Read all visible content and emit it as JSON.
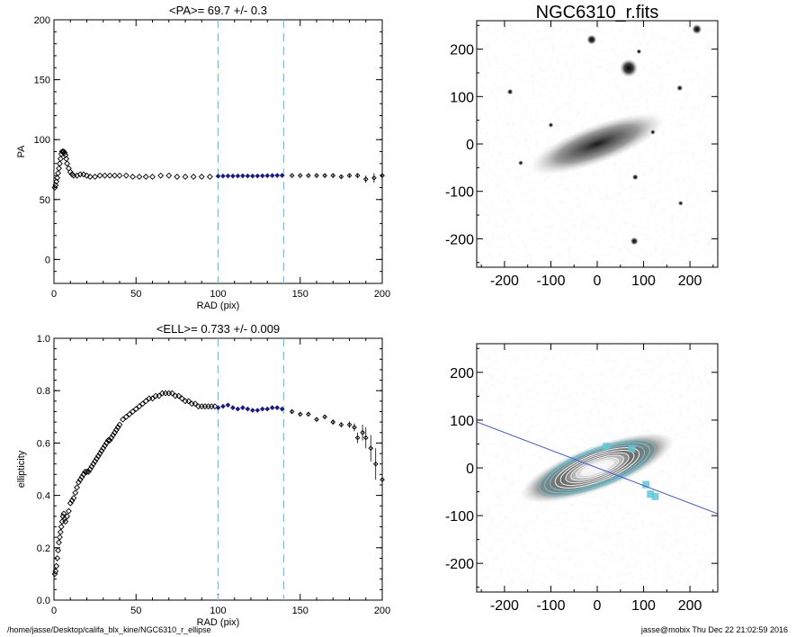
{
  "footer": {
    "path": "/home/jasse/Desktop/califa_blx_kine/NGC6310_r_ellipse",
    "user_time": "jasse@mobix  Thu Dec 22 21:02:59 2016"
  },
  "colors": {
    "fit_range": "#5fc8d8",
    "fit_points": "#1a1a8c",
    "pa_line": "#4a5fd8"
  },
  "chart_data": [
    {
      "type": "scatter",
      "title": "<PA>=  69.7 +/-   0.3",
      "xlabel": "RAD (pix)",
      "ylabel": "PA",
      "xlim": [
        0,
        200
      ],
      "ylim": [
        -20,
        200
      ],
      "xticks": [
        0,
        50,
        100,
        150,
        200
      ],
      "yticks": [
        0,
        50,
        100,
        150,
        200
      ],
      "fit_range": [
        100,
        140
      ],
      "series": [
        {
          "x": [
            0.5,
            1,
            1.5,
            2,
            2.5,
            3,
            3.5,
            4,
            4.5,
            5,
            5.5,
            6,
            6.5,
            7,
            7.5,
            8,
            9,
            10,
            11,
            12,
            14,
            16,
            18,
            20,
            22,
            25,
            28,
            31,
            34,
            37,
            40,
            44,
            48,
            52,
            56,
            60,
            65,
            70,
            75,
            80,
            85,
            90,
            95
          ],
          "y": [
            60,
            62,
            65,
            68,
            72,
            76,
            80,
            84,
            88,
            90,
            90,
            90,
            89,
            87,
            84,
            80,
            76,
            73,
            71,
            70,
            70,
            71,
            71,
            70,
            69,
            69,
            70,
            70,
            70,
            70,
            70,
            70,
            69,
            69,
            69,
            69,
            70,
            70,
            69,
            69,
            69,
            69,
            69
          ]
        },
        {
          "x": [
            100,
            103,
            106,
            109,
            112,
            115,
            118,
            121,
            124,
            127,
            130,
            133,
            136,
            139
          ],
          "y": [
            69.5,
            69.6,
            69.7,
            69.6,
            69.7,
            69.8,
            69.7,
            69.6,
            69.7,
            69.8,
            69.9,
            70,
            70.1,
            70.1
          ]
        },
        {
          "x": [
            145,
            150,
            155,
            160,
            165,
            170,
            175,
            180,
            185,
            190,
            195,
            200
          ],
          "y": [
            70,
            70,
            70,
            70,
            70,
            70,
            69,
            70,
            70,
            67,
            68,
            70
          ],
          "err": [
            0.6,
            0.6,
            0.7,
            0.8,
            1,
            1.2,
            1.4,
            1.6,
            2,
            3,
            4,
            5
          ]
        }
      ]
    },
    {
      "type": "scatter",
      "title": "<ELL>= 0.733 +/-  0.009",
      "xlabel": "RAD (pix)",
      "ylabel": "ellipticity",
      "xlim": [
        0,
        200
      ],
      "ylim": [
        0,
        1
      ],
      "xticks": [
        0,
        50,
        100,
        150,
        200
      ],
      "yticks": [
        0.0,
        0.2,
        0.4,
        0.6,
        0.8,
        1.0
      ],
      "fit_range": [
        100,
        140
      ],
      "series": [
        {
          "x": [
            0.5,
            1,
            1.5,
            2,
            2.5,
            3,
            3.5,
            4,
            4.5,
            5,
            5.5,
            6,
            6.5,
            7,
            8,
            9,
            10,
            11,
            12,
            13,
            14,
            15,
            16,
            17,
            18,
            19,
            20,
            21,
            22,
            23,
            24,
            25,
            26,
            27,
            28,
            29,
            30,
            31,
            32,
            33,
            34,
            35,
            36,
            37,
            38,
            39,
            40,
            42,
            44,
            46,
            48,
            50,
            52,
            54,
            56,
            58,
            60,
            62,
            64,
            66,
            68,
            70,
            72,
            74,
            76,
            78,
            80,
            82,
            84,
            86,
            88,
            90,
            92,
            94,
            96,
            98
          ],
          "y": [
            0.1,
            0.11,
            0.13,
            0.16,
            0.19,
            0.22,
            0.24,
            0.26,
            0.28,
            0.3,
            0.32,
            0.33,
            0.31,
            0.3,
            0.32,
            0.34,
            0.37,
            0.38,
            0.39,
            0.41,
            0.43,
            0.45,
            0.46,
            0.47,
            0.48,
            0.49,
            0.49,
            0.49,
            0.5,
            0.51,
            0.52,
            0.53,
            0.54,
            0.55,
            0.56,
            0.57,
            0.58,
            0.59,
            0.6,
            0.61,
            0.61,
            0.62,
            0.63,
            0.64,
            0.65,
            0.66,
            0.67,
            0.69,
            0.7,
            0.71,
            0.72,
            0.73,
            0.74,
            0.75,
            0.76,
            0.77,
            0.77,
            0.78,
            0.78,
            0.79,
            0.79,
            0.79,
            0.79,
            0.78,
            0.78,
            0.77,
            0.76,
            0.76,
            0.75,
            0.75,
            0.74,
            0.74,
            0.74,
            0.74,
            0.74,
            0.74
          ]
        },
        {
          "x": [
            100,
            103,
            106,
            109,
            112,
            115,
            118,
            121,
            124,
            127,
            130,
            133,
            136,
            139
          ],
          "y": [
            0.735,
            0.74,
            0.745,
            0.735,
            0.73,
            0.735,
            0.73,
            0.725,
            0.725,
            0.73,
            0.73,
            0.735,
            0.735,
            0.73
          ]
        },
        {
          "x": [
            145,
            150,
            155,
            160,
            165,
            170,
            175,
            180,
            183,
            185,
            188,
            190,
            193,
            196,
            200
          ],
          "y": [
            0.72,
            0.71,
            0.71,
            0.69,
            0.7,
            0.68,
            0.67,
            0.67,
            0.66,
            0.62,
            0.64,
            0.62,
            0.58,
            0.52,
            0.46
          ],
          "err": [
            0.005,
            0.005,
            0.006,
            0.007,
            0.008,
            0.01,
            0.01,
            0.012,
            0.015,
            0.02,
            0.03,
            0.04,
            0.05,
            0.06,
            0.07
          ]
        }
      ]
    }
  ],
  "images": [
    {
      "title": "NGC6310_r.fits",
      "xlim": [
        -260,
        260
      ],
      "ylim": [
        -260,
        260
      ],
      "xticks": [
        -200,
        -100,
        0,
        100,
        200
      ],
      "yticks": [
        -200,
        -100,
        0,
        100,
        200
      ]
    },
    {
      "title": "",
      "xlim": [
        -260,
        260
      ],
      "ylim": [
        -260,
        260
      ],
      "xticks": [
        -200,
        -100,
        0,
        100,
        200
      ],
      "yticks": [
        -200,
        -100,
        0,
        100,
        200
      ],
      "pa_deg": 69.7
    }
  ]
}
